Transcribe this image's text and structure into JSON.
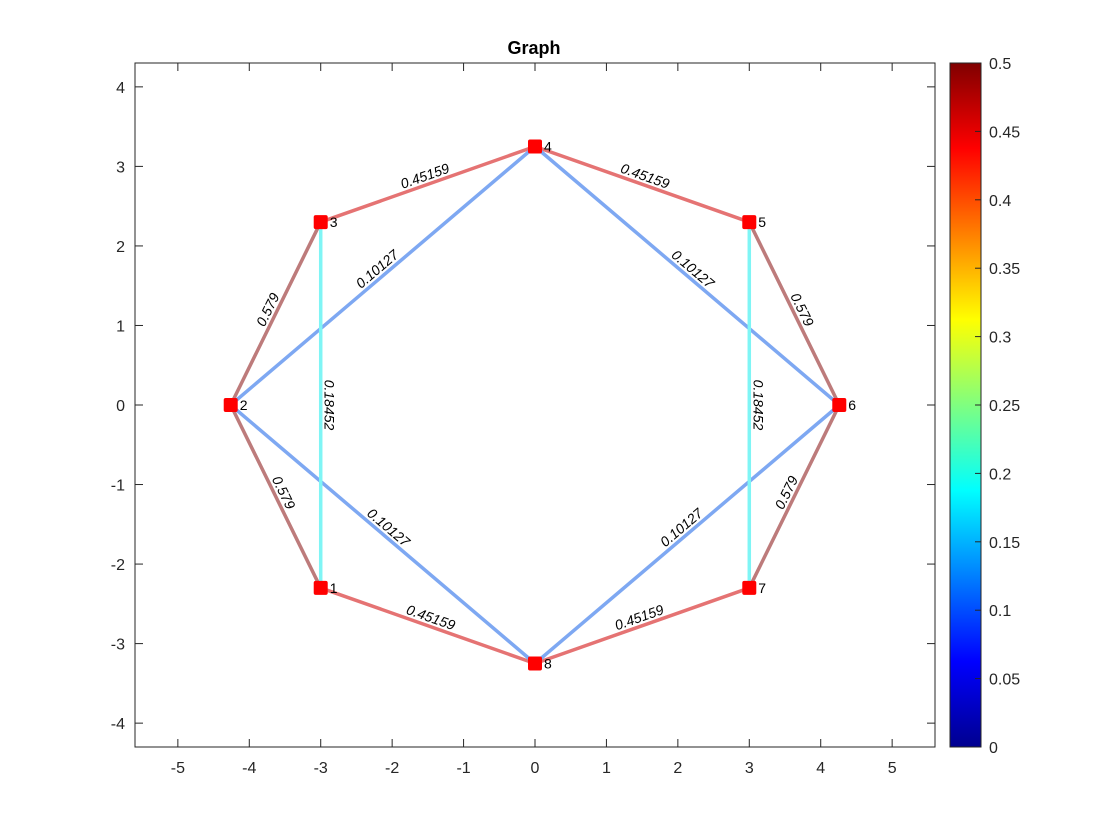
{
  "chart_data": {
    "type": "graph",
    "title": "Graph",
    "xlim": [
      -5.6,
      5.6
    ],
    "ylim": [
      -4.3,
      4.3
    ],
    "xticks": [
      -5,
      -4,
      -3,
      -2,
      -1,
      0,
      1,
      2,
      3,
      4,
      5
    ],
    "yticks": [
      -4,
      -3,
      -2,
      -1,
      0,
      1,
      2,
      3,
      4
    ],
    "nodes": [
      {
        "id": "1",
        "x": -3,
        "y": -2.3
      },
      {
        "id": "2",
        "x": -4.26,
        "y": 0
      },
      {
        "id": "3",
        "x": -3,
        "y": 2.3
      },
      {
        "id": "4",
        "x": 0,
        "y": 3.25
      },
      {
        "id": "5",
        "x": 3,
        "y": 2.3
      },
      {
        "id": "6",
        "x": 4.26,
        "y": 0
      },
      {
        "id": "7",
        "x": 3,
        "y": -2.3
      },
      {
        "id": "8",
        "x": 0,
        "y": -3.25
      }
    ],
    "edges": [
      {
        "source": "3",
        "target": "4",
        "weight": 0.45159,
        "label": "0.45159"
      },
      {
        "source": "4",
        "target": "5",
        "weight": 0.45159,
        "label": "0.45159"
      },
      {
        "source": "1",
        "target": "8",
        "weight": 0.45159,
        "label": "0.45159"
      },
      {
        "source": "8",
        "target": "7",
        "weight": 0.45159,
        "label": "0.45159"
      },
      {
        "source": "3",
        "target": "2",
        "weight": 0.579,
        "label": "0.579"
      },
      {
        "source": "2",
        "target": "1",
        "weight": 0.579,
        "label": "0.579"
      },
      {
        "source": "5",
        "target": "6",
        "weight": 0.579,
        "label": "0.579"
      },
      {
        "source": "6",
        "target": "7",
        "weight": 0.579,
        "label": "0.579"
      },
      {
        "source": "2",
        "target": "4",
        "weight": 0.10127,
        "label": "0.10127"
      },
      {
        "source": "4",
        "target": "6",
        "weight": 0.10127,
        "label": "0.10127"
      },
      {
        "source": "2",
        "target": "8",
        "weight": 0.10127,
        "label": "0.10127"
      },
      {
        "source": "8",
        "target": "6",
        "weight": 0.10127,
        "label": "0.10127"
      },
      {
        "source": "3",
        "target": "1",
        "weight": 0.18452,
        "label": "0.18452"
      },
      {
        "source": "5",
        "target": "7",
        "weight": 0.18452,
        "label": "0.18452"
      }
    ],
    "colorbar": {
      "colormap": "jet",
      "clim": [
        0,
        0.5
      ],
      "ticks": [
        "0",
        "0.05",
        "0.1",
        "0.15",
        "0.2",
        "0.25",
        "0.3",
        "0.35",
        "0.4",
        "0.45",
        "0.5"
      ]
    },
    "colors": {
      "node": "#ff0000",
      "edge_high": "#e57373",
      "edge_mid_dark": "#bd7b7b",
      "edge_blue": "#7ea8f2",
      "edge_cyan": "#7ff5f5",
      "axis": "#262626"
    }
  }
}
